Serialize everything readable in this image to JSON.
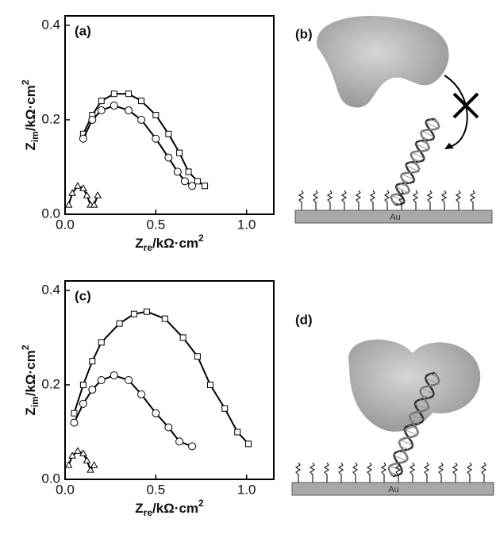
{
  "chart_data": [
    {
      "type": "scatter",
      "panel": "(a)",
      "xlabel": {
        "main": "Z",
        "sub": "re",
        "unit": "/kΩ·cm",
        "sup": "2"
      },
      "ylabel": {
        "main": "Z",
        "sub": "im",
        "unit": "/kΩ·cm",
        "sup": "2"
      },
      "xlim": [
        0,
        1.15
      ],
      "ylim": [
        0,
        0.42
      ],
      "xticks": [
        {
          "value": 0,
          "label": "0.0"
        },
        0.5,
        {
          "value": 1,
          "label": "1.0"
        }
      ],
      "yticks": [
        {
          "value": 0,
          "label": "0.0"
        },
        0.2,
        0.4
      ],
      "series": [
        {
          "marker": "square",
          "color": "#000000",
          "x": [
            0.1,
            0.15,
            0.2,
            0.27,
            0.35,
            0.42,
            0.5,
            0.57,
            0.63,
            0.68,
            0.73,
            0.77
          ],
          "values": [
            0.17,
            0.21,
            0.24,
            0.255,
            0.255,
            0.24,
            0.21,
            0.17,
            0.13,
            0.09,
            0.07,
            0.06
          ]
        },
        {
          "marker": "circle",
          "color": "#000000",
          "x": [
            0.1,
            0.15,
            0.2,
            0.27,
            0.35,
            0.42,
            0.5,
            0.57,
            0.62,
            0.66,
            0.7
          ],
          "values": [
            0.16,
            0.2,
            0.22,
            0.23,
            0.22,
            0.2,
            0.16,
            0.12,
            0.09,
            0.07,
            0.06
          ]
        },
        {
          "marker": "triangle",
          "color": "#000000",
          "x": [
            0.02,
            0.04,
            0.07,
            0.1,
            0.12,
            0.14,
            0.16,
            0.18
          ],
          "values": [
            0.02,
            0.045,
            0.06,
            0.055,
            0.04,
            0.02,
            0.02,
            0.04
          ]
        }
      ]
    },
    {
      "type": "scatter",
      "panel": "(c)",
      "xlabel": {
        "main": "Z",
        "sub": "re",
        "unit": "/kΩ·cm",
        "sup": "2"
      },
      "ylabel": {
        "main": "Z",
        "sub": "im",
        "unit": "/kΩ·cm",
        "sup": "2"
      },
      "xlim": [
        0,
        1.15
      ],
      "ylim": [
        0,
        0.42
      ],
      "xticks": [
        {
          "value": 0,
          "label": "0.0"
        },
        0.5,
        {
          "value": 1,
          "label": "1.0"
        }
      ],
      "yticks": [
        {
          "value": 0,
          "label": "0.0"
        },
        0.2,
        0.4
      ],
      "series": [
        {
          "marker": "square",
          "color": "#000000",
          "x": [
            0.05,
            0.1,
            0.15,
            0.2,
            0.3,
            0.38,
            0.45,
            0.55,
            0.65,
            0.73,
            0.8,
            0.88,
            0.95,
            1.01
          ],
          "values": [
            0.14,
            0.2,
            0.25,
            0.29,
            0.33,
            0.35,
            0.355,
            0.34,
            0.3,
            0.26,
            0.2,
            0.15,
            0.1,
            0.075
          ]
        },
        {
          "marker": "circle",
          "color": "#000000",
          "x": [
            0.05,
            0.1,
            0.15,
            0.2,
            0.27,
            0.35,
            0.42,
            0.5,
            0.57,
            0.63,
            0.7
          ],
          "values": [
            0.12,
            0.16,
            0.19,
            0.21,
            0.22,
            0.21,
            0.18,
            0.14,
            0.11,
            0.08,
            0.07
          ]
        },
        {
          "marker": "triangle",
          "color": "#000000",
          "x": [
            0.02,
            0.04,
            0.07,
            0.1,
            0.12,
            0.14,
            0.16
          ],
          "values": [
            0.03,
            0.05,
            0.06,
            0.055,
            0.04,
            0.02,
            0.03
          ]
        }
      ]
    }
  ],
  "diagrams": [
    {
      "label": "(b)",
      "substrate": "Au"
    },
    {
      "label": "(d)",
      "substrate": "Au"
    }
  ]
}
